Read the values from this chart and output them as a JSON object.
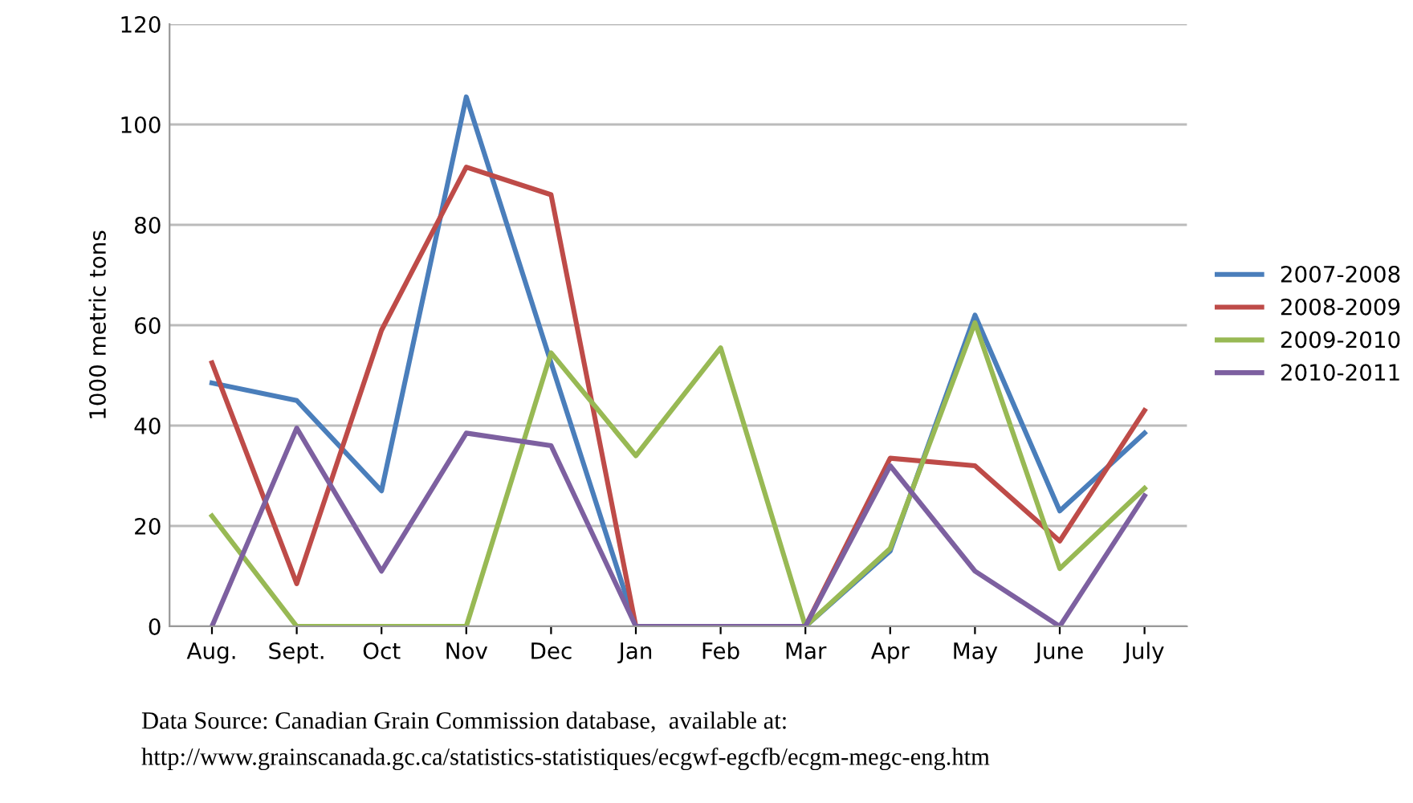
{
  "chart_data": {
    "type": "line",
    "ylabel": "1000 metric tons",
    "categories": [
      "Aug.",
      "Sept.",
      "Oct",
      "Nov",
      "Dec",
      "Jan",
      "Feb",
      "Mar",
      "Apr",
      "May",
      "June",
      "July"
    ],
    "series": [
      {
        "name": "2007-2008",
        "color": "#4a7ebb",
        "values": [
          48.5,
          45,
          27,
          105.5,
          52.5,
          0,
          0,
          0,
          15,
          62,
          23,
          38.5
        ]
      },
      {
        "name": "2008-2009",
        "color": "#be4b48",
        "values": [
          52.5,
          8.5,
          59,
          91.5,
          86,
          0,
          0,
          0,
          33.5,
          32,
          17,
          43
        ]
      },
      {
        "name": "2009-2010",
        "color": "#98b954",
        "values": [
          22,
          0,
          0,
          0,
          54.5,
          34,
          55.5,
          0,
          15.5,
          60.5,
          11.5,
          27.5
        ]
      },
      {
        "name": "2010-2011",
        "color": "#7d60a0",
        "values": [
          0,
          39.5,
          11,
          38.5,
          36,
          0,
          0,
          0,
          32,
          11,
          0,
          26
        ]
      }
    ],
    "ylim": [
      0,
      120
    ],
    "yticks": [
      0,
      20,
      40,
      60,
      80,
      100,
      120
    ],
    "grid": "y",
    "legend": "right",
    "marker": "none",
    "line_style": "solid",
    "annotations": [
      "Data Source: Canadian Grain Commission database,  available at:",
      "http://www.grainscanada.gc.ca/statistics-statistiques/ecgwf-egcfb/ecgm-megc-eng.htm"
    ]
  }
}
